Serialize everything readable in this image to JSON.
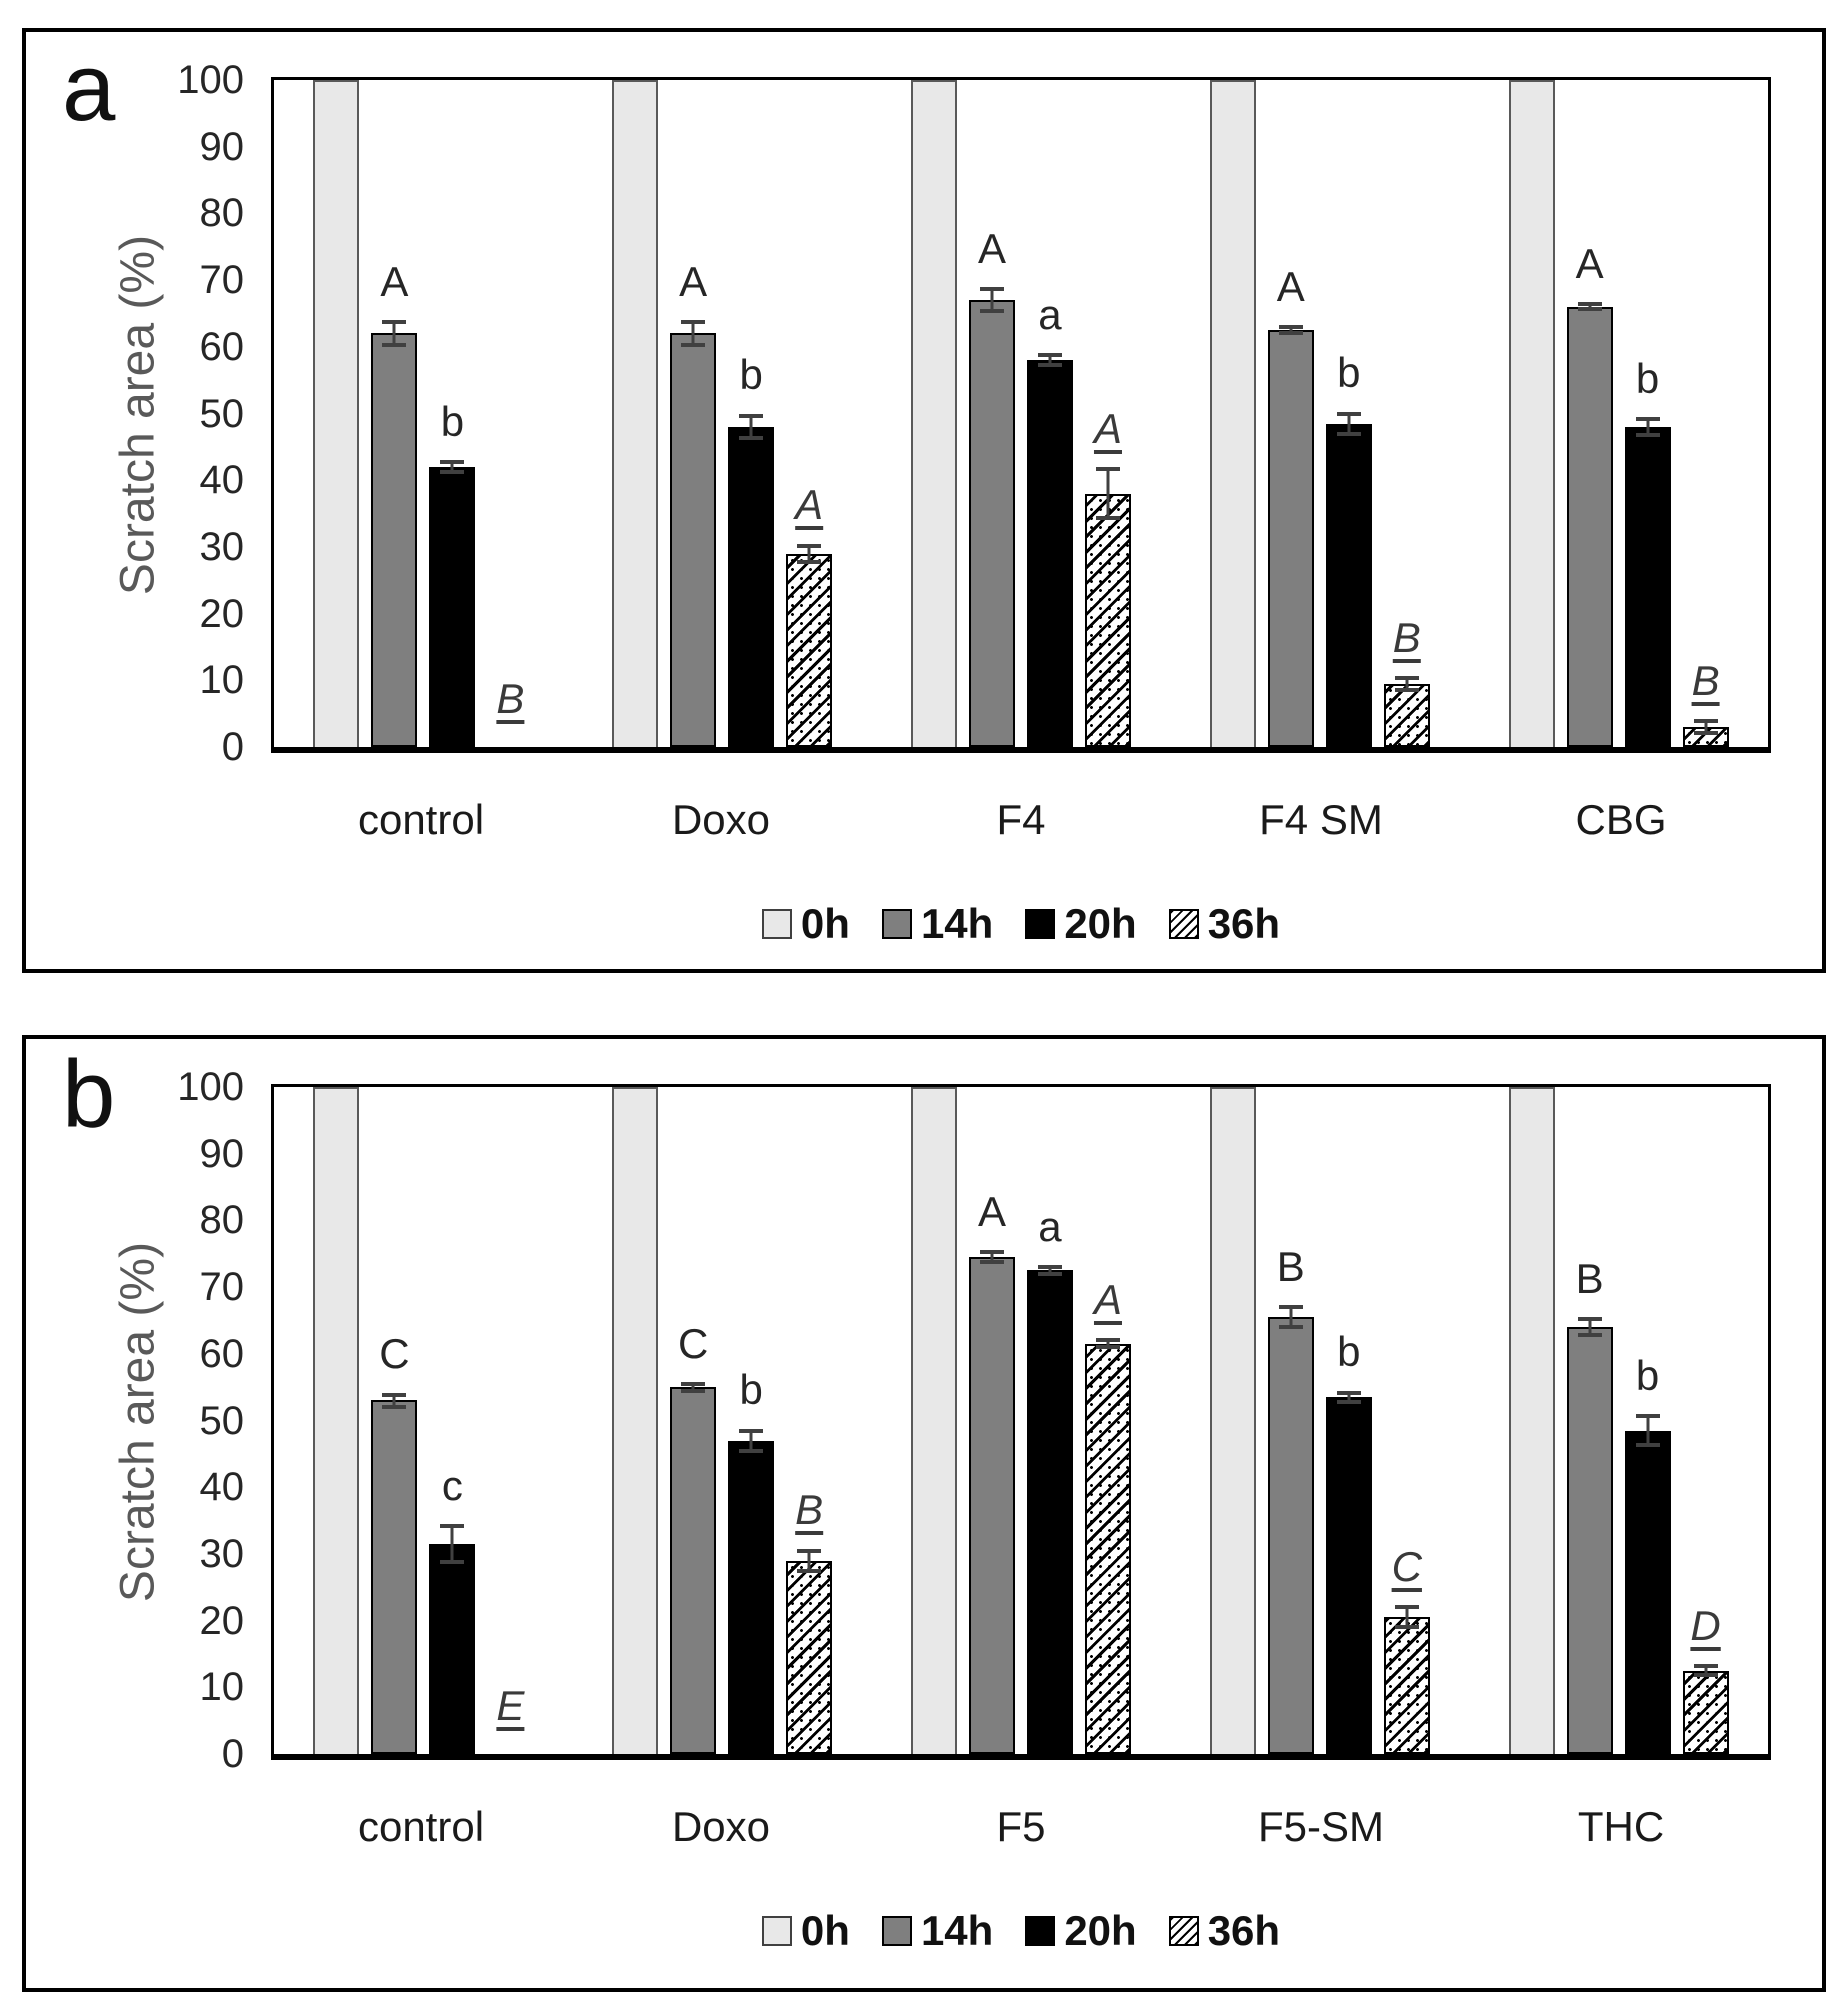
{
  "figure_type": "two-panel grouped bar chart",
  "style_colors": {
    "bar_0h_fill": "#e8e8e8",
    "bar_0h_border": "#595959",
    "bar_14h_fill": "#7f7f7f",
    "bar_20h_fill": "#000000",
    "bar_36h_hatch": "#000000",
    "error_bar": "#404040",
    "axis": "#000000",
    "y_title": "#595959",
    "text": "#262626"
  },
  "chart_data": [
    {
      "type": "bar",
      "panel_label": "a",
      "title": "",
      "xlabel": "",
      "ylabel": "Scratch area (%)",
      "ylim": [
        0,
        100
      ],
      "ytick_step": 10,
      "yticks": [
        0,
        10,
        20,
        30,
        40,
        50,
        60,
        70,
        80,
        90,
        100
      ],
      "grid": false,
      "legend_position": "bottom",
      "categories": [
        "control",
        "Doxo",
        "F4",
        "F4 SM",
        "CBG"
      ],
      "series": [
        {
          "name": "0h",
          "values": [
            100,
            100,
            100,
            100,
            100
          ],
          "errors": [
            0,
            0,
            0,
            0,
            0
          ],
          "labels": [
            "",
            "",
            "",
            "",
            ""
          ]
        },
        {
          "name": "14h",
          "values": [
            62,
            62,
            67,
            62.5,
            66
          ],
          "errors": [
            2,
            2,
            2,
            0.7,
            0.7
          ],
          "labels": [
            "A",
            "A",
            "A",
            "A",
            "A"
          ]
        },
        {
          "name": "20h",
          "values": [
            42,
            48,
            58,
            48.5,
            48
          ],
          "errors": [
            1,
            2,
            1,
            1.8,
            1.5
          ],
          "labels": [
            "b",
            "b",
            "a",
            "b",
            "b"
          ]
        },
        {
          "name": "36h",
          "values": [
            0,
            29,
            38,
            9.5,
            3
          ],
          "errors": [
            0,
            1.5,
            4,
            1.2,
            1.2
          ],
          "labels": [
            "B",
            "A",
            "A",
            "B",
            "B"
          ],
          "labels_style": "italic-underline"
        }
      ]
    },
    {
      "type": "bar",
      "panel_label": "b",
      "title": "",
      "xlabel": "",
      "ylabel": "Scratch area (%)",
      "ylim": [
        0,
        100
      ],
      "ytick_step": 10,
      "yticks": [
        0,
        10,
        20,
        30,
        40,
        50,
        60,
        70,
        80,
        90,
        100
      ],
      "grid": false,
      "legend_position": "bottom",
      "categories": [
        "control",
        "Doxo",
        "F5",
        "F5-SM",
        "THC"
      ],
      "series": [
        {
          "name": "0h",
          "values": [
            100,
            100,
            100,
            100,
            100
          ],
          "errors": [
            0,
            0,
            0,
            0,
            0
          ],
          "labels": [
            "",
            "",
            "",
            "",
            ""
          ]
        },
        {
          "name": "14h",
          "values": [
            53,
            55,
            74.5,
            65.5,
            64
          ],
          "errors": [
            1.2,
            0.8,
            1,
            1.8,
            1.5
          ],
          "labels": [
            "C",
            "C",
            "A",
            "B",
            "B"
          ]
        },
        {
          "name": "20h",
          "values": [
            31.5,
            47,
            72.5,
            53.5,
            48.5
          ],
          "errors": [
            3,
            1.8,
            0.8,
            1,
            2.5
          ],
          "labels": [
            "c",
            "b",
            "a",
            "b",
            "b"
          ]
        },
        {
          "name": "36h",
          "values": [
            0,
            29,
            61.5,
            20.5,
            12.5
          ],
          "errors": [
            0,
            1.8,
            0.8,
            1.8,
            1
          ],
          "labels": [
            "E",
            "B",
            "A",
            "C",
            "D"
          ],
          "labels_style": "italic-underline"
        }
      ]
    }
  ]
}
